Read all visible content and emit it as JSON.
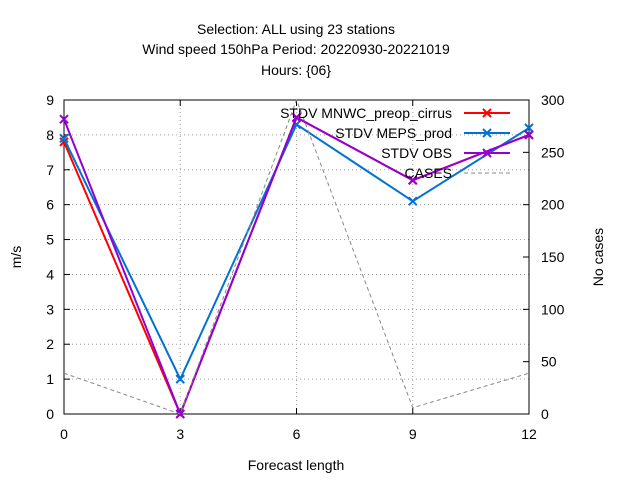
{
  "chart_data": {
    "type": "line",
    "title_lines": [
      "Selection: ALL using    23 stations",
      "Wind speed 150hPa   Period: 20220930-20221019",
      "Hours: {06}"
    ],
    "xlabel": "Forecast length",
    "ylabel": "m/s",
    "y2label": "No cases",
    "x": [
      0,
      3,
      6,
      9,
      12
    ],
    "xlim": [
      0,
      12
    ],
    "ylim": [
      0,
      9
    ],
    "y2lim": [
      0,
      300
    ],
    "x_ticks": [
      0,
      3,
      6,
      9,
      12
    ],
    "y_ticks": [
      0,
      1,
      2,
      3,
      4,
      5,
      6,
      7,
      8,
      9
    ],
    "y2_ticks": [
      0,
      50,
      100,
      150,
      200,
      250,
      300
    ],
    "grid": true,
    "legend_position": "top-right",
    "series": [
      {
        "name": "STDV MNWC_preop_cirrus",
        "axis": "y",
        "color": "#ff0000",
        "marker": "x",
        "values": [
          7.8,
          0.0,
          8.5,
          6.7,
          8.0
        ]
      },
      {
        "name": "STDV MEPS_prod",
        "axis": "y",
        "color": "#0072d6",
        "marker": "x",
        "values": [
          7.9,
          1.0,
          8.3,
          6.1,
          8.2
        ]
      },
      {
        "name": "STDV OBS",
        "axis": "y",
        "color": "#9400d3",
        "marker": "x",
        "values": [
          8.45,
          0.0,
          8.5,
          6.7,
          8.0
        ]
      },
      {
        "name": "CASES",
        "axis": "y2",
        "color": "#888888",
        "dashed": true,
        "marker": "none",
        "values": [
          39,
          0,
          300,
          6,
          39
        ]
      }
    ]
  }
}
